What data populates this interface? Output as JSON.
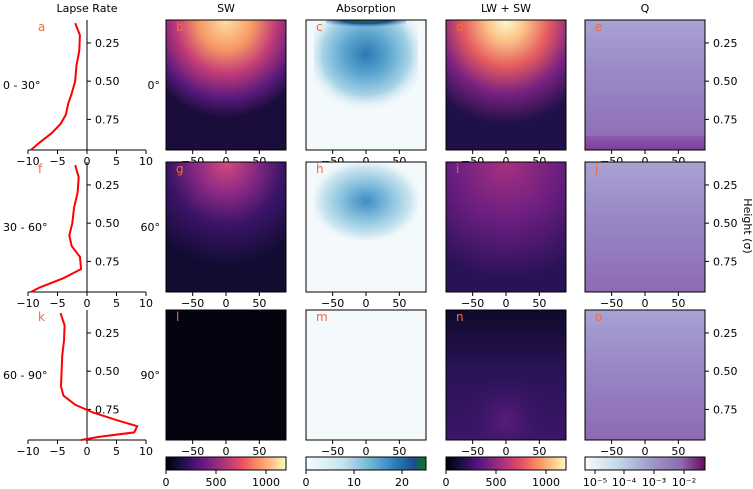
{
  "chart_data": {
    "type": "heatmap",
    "column_titles": [
      "Lapse Rate",
      "SW",
      "Absorption",
      "LW + SW",
      "Q"
    ],
    "rows": [
      {
        "side_label": "0 - 30°",
        "latitude_label": "0°"
      },
      {
        "side_label": "30 - 60°",
        "latitude_label": "60°"
      },
      {
        "side_label": "60 - 90°",
        "latitude_label": "90°"
      }
    ],
    "panel_letters": [
      "a",
      "b",
      "c",
      "d",
      "e",
      "f",
      "g",
      "h",
      "i",
      "j",
      "k",
      "l",
      "m",
      "n",
      "o"
    ],
    "right_axis_label": "Height (σ)",
    "lapse_rate": {
      "xlim": [
        -10,
        10
      ],
      "xticks": [
        "−10",
        "−5",
        "0",
        "5",
        "10"
      ],
      "yticks": [
        "0.25",
        "0.50",
        "0.75"
      ],
      "ylim_sigma": [
        0.1,
        0.95
      ],
      "profiles": [
        {
          "name": "0 - 30°",
          "x": [
            -2.0,
            -1.2,
            -1.3,
            -1.8,
            -2.0,
            -2.6,
            -3.2,
            -3.6,
            -4.5,
            -6.0,
            -8.0,
            -9.5
          ],
          "sigma": [
            0.12,
            0.2,
            0.3,
            0.4,
            0.5,
            0.58,
            0.65,
            0.72,
            0.78,
            0.84,
            0.9,
            0.95
          ]
        },
        {
          "name": "30 - 60°",
          "x": [
            -2.0,
            -1.4,
            -1.6,
            -2.2,
            -2.5,
            -3.0,
            -2.6,
            -1.2,
            -1.0,
            -4.0,
            -8.0,
            -9.5
          ],
          "sigma": [
            0.12,
            0.2,
            0.3,
            0.4,
            0.5,
            0.58,
            0.65,
            0.72,
            0.8,
            0.86,
            0.92,
            0.95
          ]
        },
        {
          "name": "60 - 90°",
          "x": [
            -4.5,
            -3.8,
            -3.9,
            -4.2,
            -4.3,
            -4.4,
            -4.0,
            -2.0,
            1.0,
            5.0,
            8.5,
            8.0,
            2.0,
            -1.0
          ],
          "sigma": [
            0.12,
            0.2,
            0.3,
            0.4,
            0.5,
            0.6,
            0.66,
            0.72,
            0.77,
            0.82,
            0.86,
            0.9,
            0.93,
            0.95
          ]
        }
      ]
    },
    "heatmap_xticks": [
      "−50",
      "0",
      "50"
    ],
    "heatmap_xlim": [
      -90,
      90
    ],
    "q_yticks": [
      "0.25",
      "0.50",
      "0.75"
    ],
    "colorbars": [
      {
        "column": "SW",
        "ticks": [
          "0",
          "500",
          "1000"
        ],
        "vmax": 1200
      },
      {
        "column": "Absorption",
        "ticks": [
          "0",
          "10",
          "20"
        ],
        "vmax": 25
      },
      {
        "column": "LW + SW",
        "ticks": [
          "0",
          "500",
          "1000"
        ],
        "vmax": 1200
      },
      {
        "column": "Q",
        "ticks": [
          "10⁻⁵",
          "10⁻⁴",
          "10⁻³",
          "10⁻²"
        ],
        "scale": "log"
      }
    ],
    "colors": {
      "profile_line": "#ff0000",
      "panel_letter": "#f26a3c"
    }
  }
}
